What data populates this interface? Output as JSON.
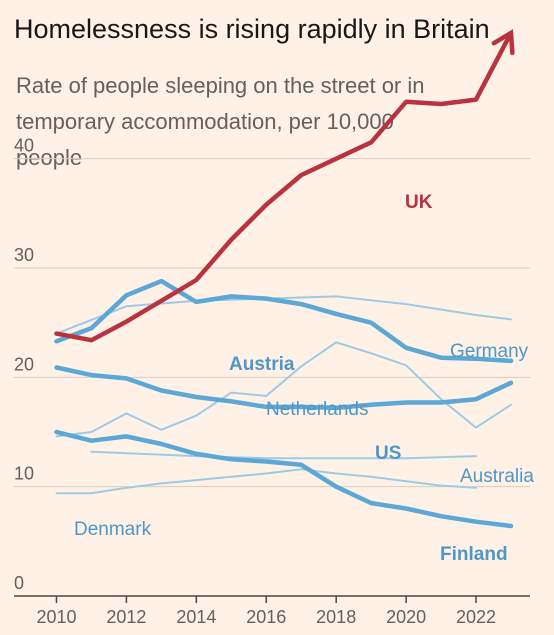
{
  "chart_data": {
    "type": "line",
    "title": "Homelessness is rising rapidly in Britain",
    "subtitle": "Rate of people sleeping on the street or in temporary accommodation, per 10,000 people",
    "x_ticks": [
      "2010",
      "2012",
      "2014",
      "2016",
      "2018",
      "2020",
      "2022"
    ],
    "y_ticks": [
      "0",
      "10",
      "20",
      "30",
      "40"
    ],
    "xlim": [
      2009.7,
      2023.2
    ],
    "ylim": [
      0,
      45
    ],
    "grid": true,
    "colors": {
      "uk": "#b8333f",
      "highlight": "#5ba7d6",
      "muted": "#9dcbe6",
      "label_muted": "#4e98c9"
    },
    "series": [
      {
        "name": "UK",
        "style": "uk",
        "x": [
          2010,
          2011,
          2012,
          2013,
          2014,
          2015,
          2016,
          2017,
          2018,
          2019,
          2020,
          2021,
          2022,
          2023
        ],
        "y": [
          24.0,
          23.4,
          25.1,
          27.0,
          28.9,
          32.6,
          35.8,
          38.5,
          40.0,
          41.5,
          45.2,
          45.0,
          45.4,
          51.5
        ]
      },
      {
        "name": "Austria",
        "style": "highlight",
        "x": [
          2010,
          2011,
          2012,
          2013,
          2014,
          2015,
          2016,
          2017,
          2018,
          2019,
          2020,
          2021,
          2022,
          2023
        ],
        "y": [
          23.3,
          24.5,
          27.5,
          28.8,
          26.9,
          27.4,
          27.2,
          26.7,
          25.8,
          25.0,
          22.7,
          21.8,
          21.7,
          21.5
        ]
      },
      {
        "name": "US",
        "style": "highlight",
        "x": [
          2010,
          2011,
          2012,
          2013,
          2014,
          2015,
          2016,
          2017,
          2018,
          2019,
          2020,
          2021,
          2022,
          2023
        ],
        "y": [
          20.9,
          20.2,
          19.9,
          18.8,
          18.2,
          17.8,
          17.3,
          17.3,
          17.2,
          17.5,
          17.7,
          17.7,
          18.0,
          19.5
        ]
      },
      {
        "name": "Finland",
        "style": "highlight",
        "x": [
          2010,
          2011,
          2012,
          2013,
          2014,
          2015,
          2016,
          2017,
          2018,
          2019,
          2020,
          2021,
          2022,
          2023
        ],
        "y": [
          15.0,
          14.2,
          14.6,
          13.9,
          13.0,
          12.5,
          12.3,
          12.0,
          10.0,
          8.5,
          8.0,
          7.3,
          6.8,
          6.4
        ]
      },
      {
        "name": "Germany",
        "style": "muted",
        "x": [
          2010,
          2012,
          2014,
          2016,
          2018,
          2020,
          2022,
          2023
        ],
        "y": [
          24.0,
          26.5,
          27.0,
          27.2,
          27.4,
          26.7,
          25.7,
          25.3
        ]
      },
      {
        "name": "Netherlands",
        "style": "muted",
        "x": [
          2010,
          2011,
          2012,
          2013,
          2014,
          2015,
          2016,
          2017,
          2018,
          2019,
          2020,
          2021,
          2022,
          2023
        ],
        "y": [
          14.6,
          15.0,
          16.7,
          15.2,
          16.5,
          18.6,
          18.3,
          21.0,
          23.2,
          22.2,
          21.1,
          18.0,
          15.4,
          17.5
        ]
      },
      {
        "name": "Australia",
        "style": "muted",
        "x": [
          2011,
          2014,
          2016,
          2020,
          2022
        ],
        "y": [
          13.2,
          12.8,
          12.6,
          12.6,
          12.8
        ]
      },
      {
        "name": "Denmark",
        "style": "muted",
        "x": [
          2010,
          2011,
          2012,
          2013,
          2014,
          2015,
          2016,
          2017,
          2018,
          2019,
          2020,
          2021,
          2022
        ],
        "y": [
          9.4,
          9.4,
          9.9,
          10.3,
          10.6,
          10.9,
          11.2,
          11.6,
          11.2,
          10.9,
          10.5,
          10.1,
          9.9
        ]
      }
    ]
  }
}
